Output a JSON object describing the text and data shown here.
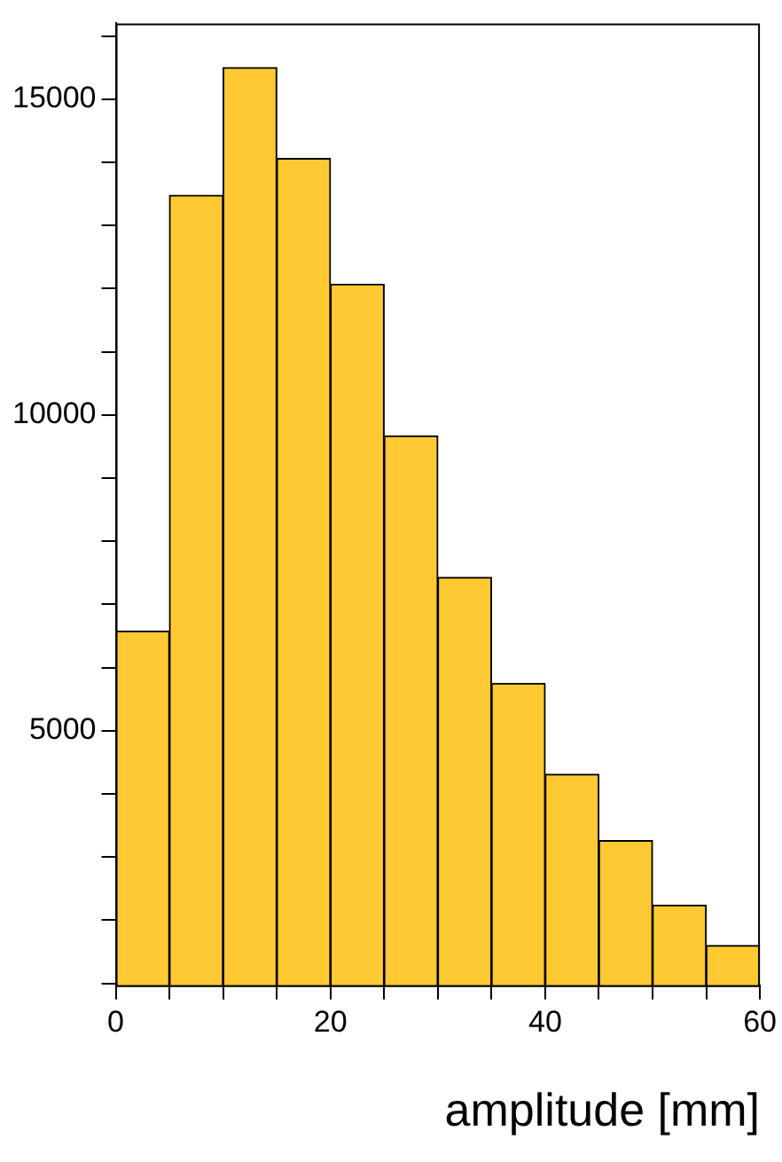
{
  "chart_data": {
    "type": "histogram",
    "xlabel": "amplitude [mm]",
    "bins": [
      0,
      5,
      10,
      15,
      20,
      25,
      30,
      35,
      40,
      45,
      50,
      55,
      60
    ],
    "values": [
      6580,
      13480,
      15500,
      14060,
      12070,
      9670,
      7430,
      5750,
      4310,
      3260,
      2240,
      1600
    ],
    "color": "#fec932",
    "grid": false,
    "legend": false,
    "xlim": [
      0,
      60
    ],
    "xticks": [
      0,
      {
        "value": 5,
        "label": null
      },
      {
        "value": 10,
        "label": null
      },
      {
        "value": 15,
        "label": null
      },
      20,
      {
        "value": 25,
        "label": null
      },
      {
        "value": 30,
        "label": null
      },
      {
        "value": 35,
        "label": null
      },
      40,
      {
        "value": 45,
        "label": null
      },
      {
        "value": 50,
        "label": null
      },
      {
        "value": 55,
        "label": null
      },
      60
    ],
    "ylim": [
      970,
      16200
    ],
    "yticks": [
      {
        "value": 1000,
        "label": null
      },
      {
        "value": 2000,
        "label": null
      },
      {
        "value": 3000,
        "label": null
      },
      {
        "value": 4000,
        "label": null
      },
      5000,
      {
        "value": 6000,
        "label": null
      },
      {
        "value": 7000,
        "label": null
      },
      {
        "value": 8000,
        "label": null
      },
      {
        "value": 9000,
        "label": null
      },
      10000,
      {
        "value": 11000,
        "label": null
      },
      {
        "value": 12000,
        "label": null
      },
      {
        "value": 13000,
        "label": null
      },
      {
        "value": 14000,
        "label": null
      },
      15000,
      {
        "value": 16000,
        "label": null
      }
    ]
  }
}
